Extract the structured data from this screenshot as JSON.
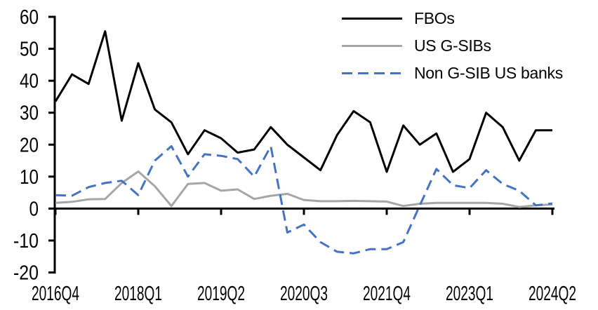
{
  "chart_data": {
    "type": "line",
    "title": "",
    "grid": false,
    "background": "#ffffff",
    "axis_color": "#000000",
    "legend_position": "top-right",
    "ylim": [
      -20,
      60
    ],
    "y_ticks": [
      60,
      50,
      40,
      30,
      20,
      10,
      0,
      -10,
      -20
    ],
    "x_tick_labels": [
      "2016Q4",
      "2018Q1",
      "2019Q2",
      "2020Q3",
      "2021Q4",
      "2023Q1",
      "2024Q2"
    ],
    "x_categories": [
      "2016Q4",
      "2017Q1",
      "2017Q2",
      "2017Q3",
      "2017Q4",
      "2018Q1",
      "2018Q2",
      "2018Q3",
      "2018Q4",
      "2019Q1",
      "2019Q2",
      "2019Q3",
      "2019Q4",
      "2020Q1",
      "2020Q2",
      "2020Q3",
      "2020Q4",
      "2021Q1",
      "2021Q2",
      "2021Q3",
      "2021Q4",
      "2022Q1",
      "2022Q2",
      "2022Q3",
      "2022Q4",
      "2023Q1",
      "2023Q2",
      "2023Q3",
      "2023Q4",
      "2024Q1",
      "2024Q2"
    ],
    "series": [
      {
        "name": "FBOs",
        "color": "#000000",
        "style": "solid",
        "values": [
          33.5,
          42,
          39,
          55.5,
          27.5,
          45.5,
          31,
          27,
          17,
          24.5,
          22,
          17.5,
          18.5,
          25.5,
          20,
          16,
          12,
          23,
          30.5,
          27,
          11.5,
          26,
          20,
          23.5,
          11.5,
          15.5,
          30,
          25.5,
          15,
          24.5,
          24.5
        ]
      },
      {
        "name": "US G-SIBs",
        "color": "#a6a6a6",
        "style": "solid",
        "values": [
          1.8,
          2.1,
          2.9,
          3,
          8,
          11.6,
          7,
          0.8,
          7.7,
          8,
          5.6,
          6,
          3,
          4,
          4.6,
          2.7,
          2.3,
          2.3,
          2.4,
          2.3,
          2.2,
          0.8,
          1.5,
          1.8,
          1.8,
          1.8,
          1.8,
          1.5,
          0.5,
          1,
          1.3
        ]
      },
      {
        "name": "Non G-SIB US banks",
        "color": "#4472c4",
        "style": "dashed",
        "values": [
          4.2,
          4,
          6.7,
          8,
          8.7,
          4.2,
          15,
          19.5,
          10,
          17,
          16.5,
          15.5,
          10,
          19.5,
          -7.5,
          -5,
          -10.5,
          -13.5,
          -14,
          -12.7,
          -12.7,
          -10.5,
          1,
          12.4,
          7.3,
          6.4,
          12,
          7.7,
          5.6,
          1,
          1.6
        ]
      }
    ]
  }
}
